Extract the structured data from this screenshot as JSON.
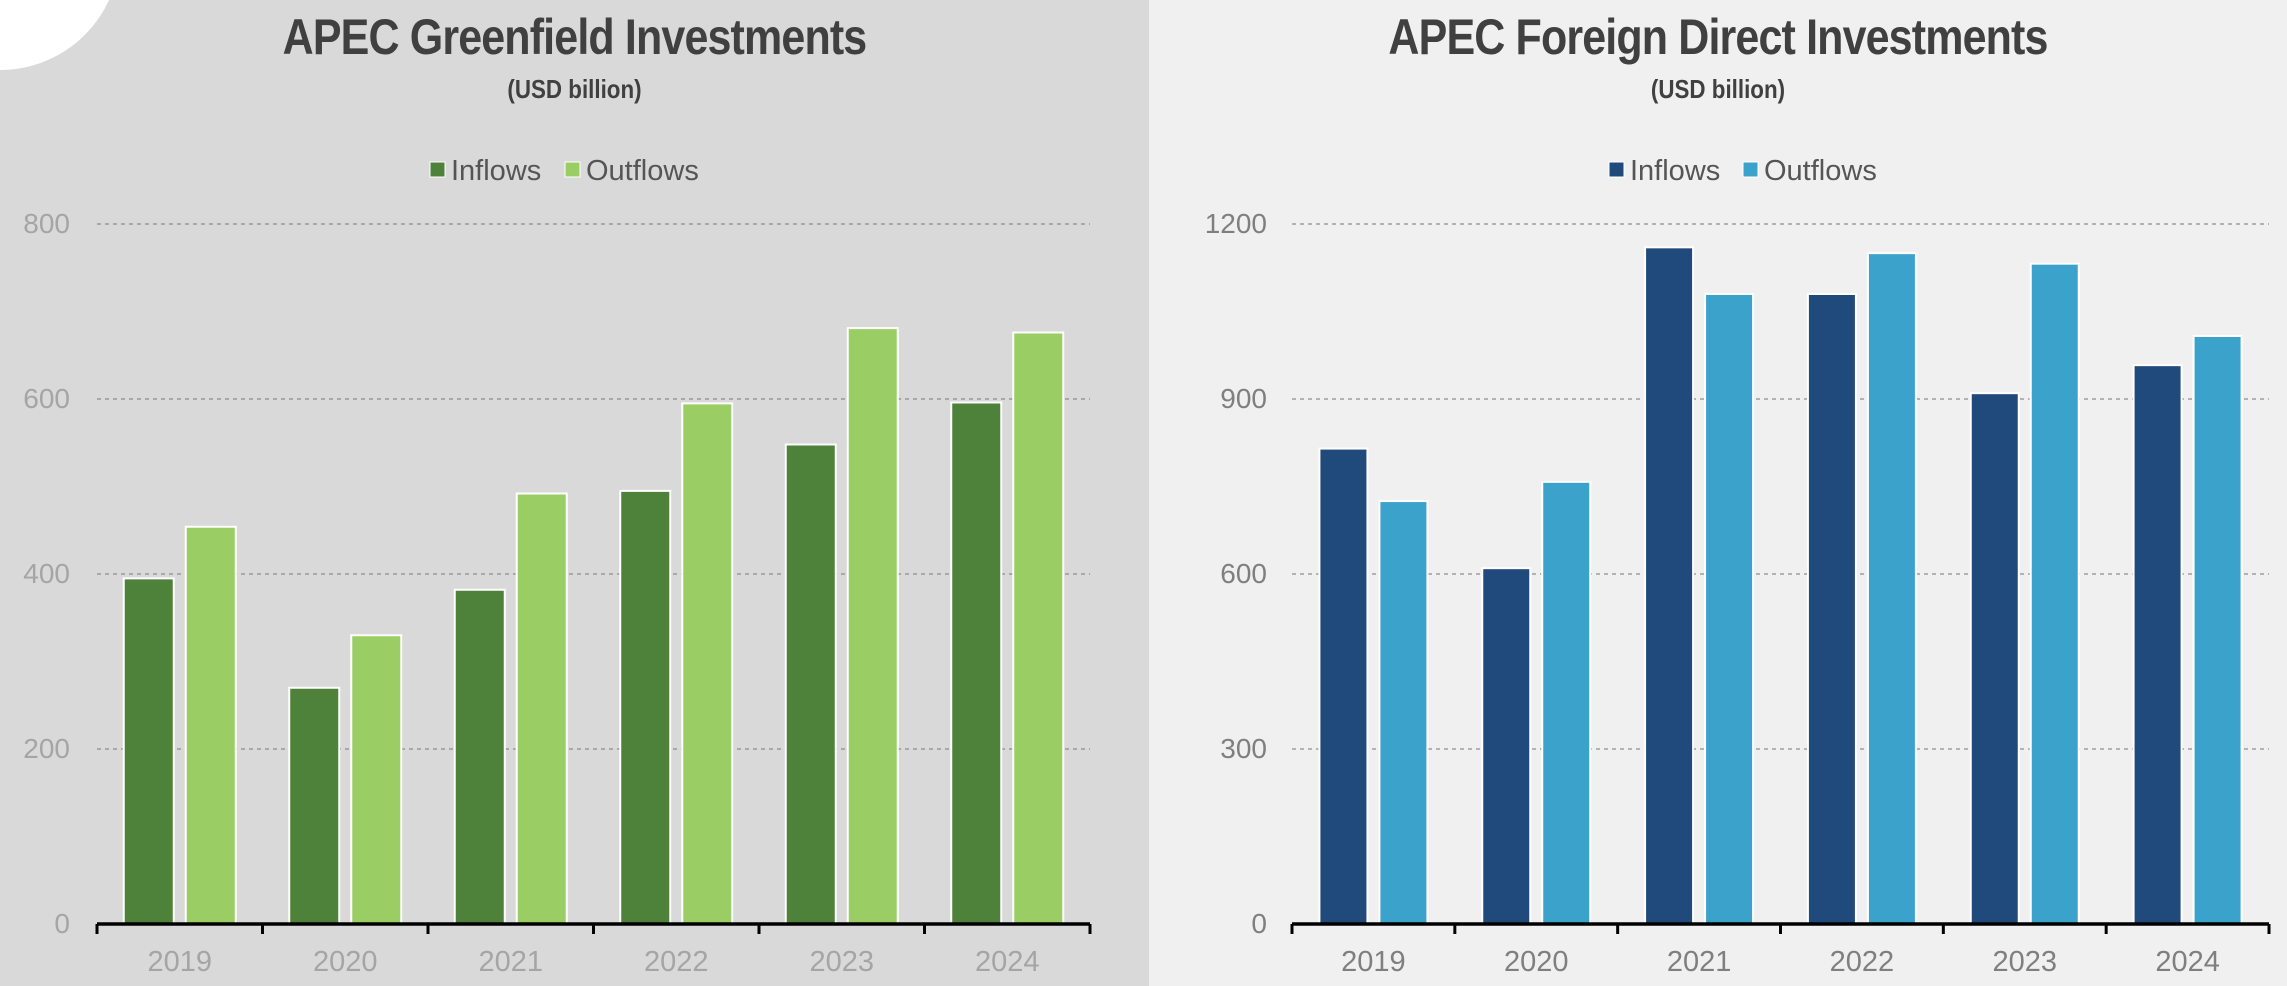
{
  "chart_data": [
    {
      "type": "bar",
      "title": "APEC Greenfield Investments",
      "subtitle": "(USD billion)",
      "xlabel": "",
      "ylabel": "",
      "categories": [
        "2019",
        "2020",
        "2021",
        "2022",
        "2023",
        "2024"
      ],
      "series": [
        {
          "name": "Inflows",
          "values": [
            395,
            270,
            382,
            495,
            548,
            596
          ],
          "color": "#4e8139"
        },
        {
          "name": "Outflows",
          "values": [
            454,
            330,
            492,
            595,
            681,
            676
          ],
          "color": "#9bcd65"
        }
      ],
      "yticks": [
        0,
        200,
        400,
        600,
        800
      ],
      "ylim": [
        0,
        800
      ],
      "grid": true,
      "legend": "top-center"
    },
    {
      "type": "bar",
      "title": "APEC Foreign Direct Investments",
      "subtitle": "(USD billion)",
      "xlabel": "",
      "ylabel": "",
      "categories": [
        "2019",
        "2020",
        "2021",
        "2022",
        "2023",
        "2024"
      ],
      "series": [
        {
          "name": "Inflows",
          "values": [
            815,
            610,
            1160,
            1080,
            910,
            958
          ],
          "color": "#214a7c"
        },
        {
          "name": "Outflows",
          "values": [
            725,
            758,
            1080,
            1150,
            1132,
            1008
          ],
          "color": "#3ba2cb"
        }
      ],
      "yticks": [
        0,
        300,
        600,
        900,
        1200
      ],
      "ylim": [
        0,
        1200
      ],
      "grid": true,
      "legend": "top-center"
    }
  ]
}
